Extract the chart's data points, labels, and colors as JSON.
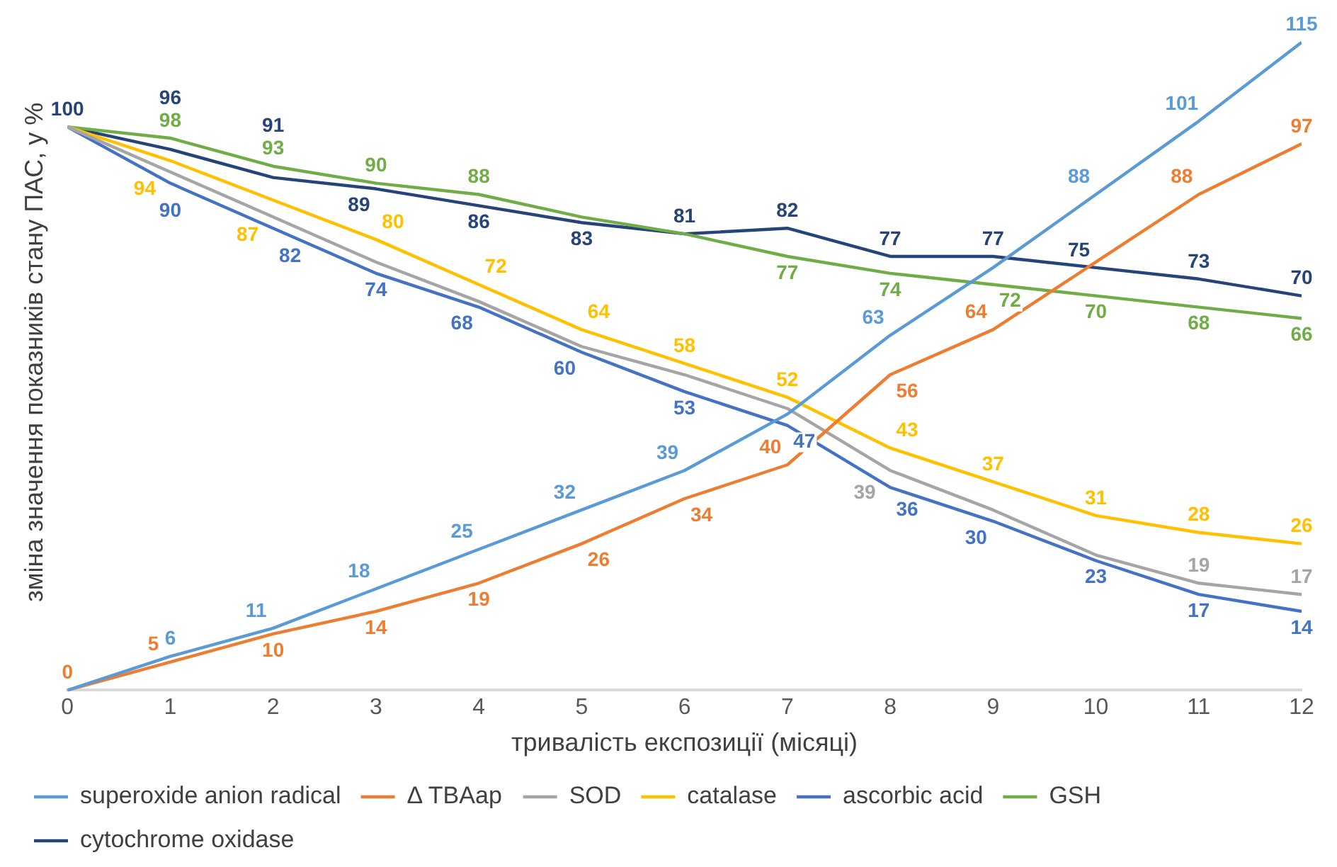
{
  "chart_data": {
    "type": "line",
    "xlabel": "тривалість експозиції (місяці)",
    "ylabel": "зміна значення показників стану ПАС, у %",
    "x": [
      0,
      1,
      2,
      3,
      4,
      5,
      6,
      7,
      8,
      9,
      10,
      11,
      12
    ],
    "xlim": [
      0,
      12
    ],
    "xticks": [
      0,
      1,
      2,
      3,
      4,
      5,
      6,
      7,
      8,
      9,
      10,
      11,
      12
    ],
    "series": [
      {
        "name": "superoxide anion radical",
        "color": "#5b9bd5",
        "values": [
          0,
          6,
          11,
          18,
          25,
          32,
          39,
          49,
          63,
          75,
          88,
          101,
          115
        ],
        "value_labels": [
          null,
          "6",
          "11",
          "18",
          "25",
          "32",
          "39",
          null,
          "63",
          null,
          "88",
          "101",
          "115"
        ]
      },
      {
        "name": "Δ TBAap",
        "color": "#ed7d31",
        "values": [
          0,
          5,
          10,
          14,
          19,
          26,
          34,
          40,
          56,
          64,
          76,
          88,
          97
        ],
        "value_labels": [
          "0",
          "5",
          "10",
          "14",
          "19",
          "26",
          "34",
          "40",
          "56",
          "64",
          null,
          "88",
          "97"
        ]
      },
      {
        "name": "SOD",
        "color": "#a5a5a5",
        "values": [
          100,
          92,
          84,
          76,
          69,
          61,
          56,
          50,
          39,
          32,
          24,
          19,
          17
        ],
        "value_labels": [
          null,
          null,
          null,
          null,
          null,
          null,
          null,
          null,
          "39",
          null,
          null,
          "19",
          "17"
        ]
      },
      {
        "name": "catalase",
        "color": "#ffc000",
        "values": [
          100,
          94,
          87,
          80,
          72,
          64,
          58,
          52,
          43,
          37,
          31,
          28,
          26
        ],
        "value_labels": [
          null,
          "94",
          "87",
          "80",
          "72",
          "64",
          "58",
          "52",
          "43",
          "37",
          "31",
          "28",
          "26"
        ]
      },
      {
        "name": "ascorbic acid",
        "color": "#4472c4",
        "values": [
          100,
          90,
          82,
          74,
          68,
          60,
          53,
          47,
          36,
          30,
          23,
          17,
          14
        ],
        "value_labels": [
          null,
          "90",
          "82",
          "74",
          "68",
          "60",
          "53",
          "47",
          "36",
          "30",
          "23",
          "17",
          "14"
        ]
      },
      {
        "name": "GSH",
        "color": "#70ad47",
        "values": [
          100,
          98,
          93,
          90,
          88,
          84,
          81,
          77,
          74,
          72,
          70,
          68,
          66
        ],
        "value_labels": [
          null,
          "98",
          "93",
          "90",
          "88",
          null,
          null,
          "77",
          "74",
          "72",
          "70",
          "68",
          "66"
        ]
      },
      {
        "name": "cytochrome oxidase",
        "color": "#264478",
        "values": [
          100,
          96,
          91,
          89,
          86,
          83,
          81,
          82,
          77,
          77,
          75,
          73,
          70
        ],
        "value_labels": [
          "100",
          "96",
          "91",
          "89",
          "86",
          "83",
          "81",
          "82",
          "77",
          "77",
          "75",
          "73",
          "70"
        ]
      }
    ],
    "legend": "bottom",
    "tick_labels": "x",
    "grid": false,
    "marker": "none",
    "line_style": "solid"
  }
}
